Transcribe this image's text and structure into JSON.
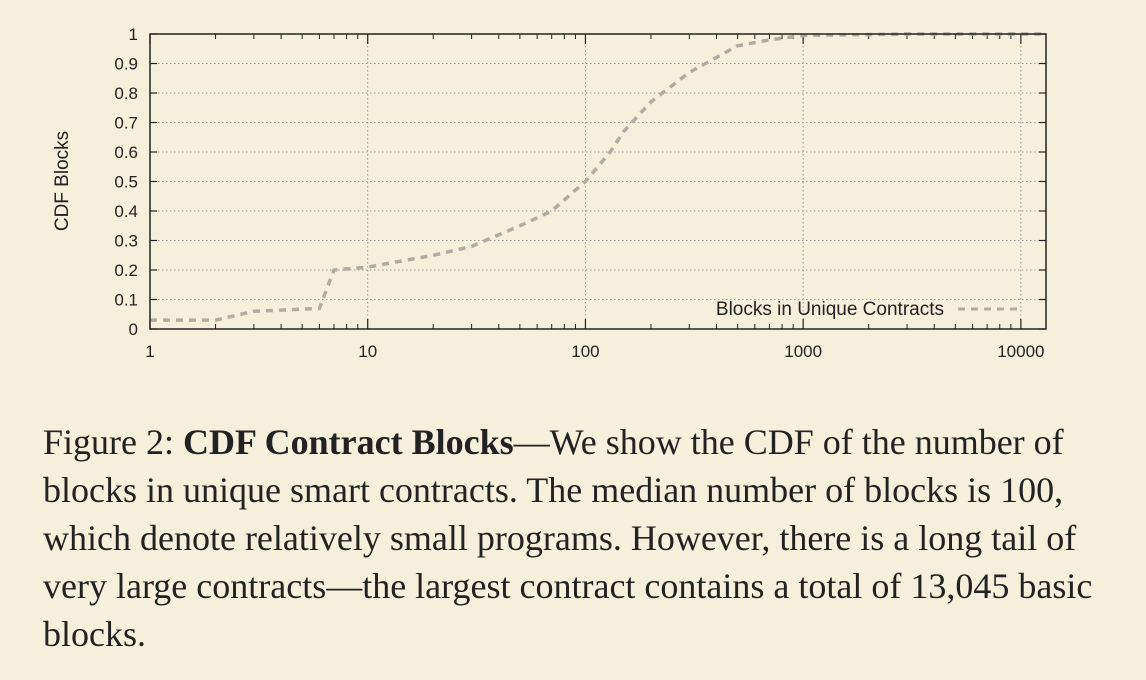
{
  "chart_data": {
    "type": "line",
    "xscale": "log",
    "xlim": [
      1,
      13045
    ],
    "ylim": [
      0,
      1
    ],
    "xticks": [
      1,
      10,
      100,
      1000,
      10000
    ],
    "xtick_labels": [
      "1",
      "10",
      "100",
      "1000",
      "10000"
    ],
    "yticks": [
      0,
      0.1,
      0.2,
      0.3,
      0.4,
      0.5,
      0.6,
      0.7,
      0.8,
      0.9,
      1
    ],
    "ytick_labels": [
      "0",
      "0.1",
      "0.2",
      "0.3",
      "0.4",
      "0.5",
      "0.6",
      "0.7",
      "0.8",
      "0.9",
      "1"
    ],
    "xlabel": "",
    "ylabel": "CDF Blocks",
    "grid": true,
    "legend_position": "bottom-right",
    "series": [
      {
        "name": "Blocks in Unique Contracts",
        "color": "#b0aca2",
        "style": "dashed",
        "x": [
          1,
          2,
          3,
          6,
          7,
          10,
          20,
          30,
          50,
          70,
          100,
          130,
          150,
          200,
          300,
          500,
          700,
          1000,
          3000,
          13045
        ],
        "y": [
          0.03,
          0.03,
          0.06,
          0.07,
          0.2,
          0.21,
          0.25,
          0.28,
          0.35,
          0.4,
          0.5,
          0.6,
          0.67,
          0.77,
          0.87,
          0.96,
          0.98,
          0.995,
          1.0,
          1.0
        ]
      }
    ]
  },
  "caption": {
    "figure_label": "Figure 2:",
    "title": "CDF Contract Blocks",
    "body": "—We show the CDF of the number of blocks in unique smart contracts. The median number of blocks is 100, which denote relatively small programs. However, there is a long tail of very large contracts—the largest contract contains a total of 13,045 basic blocks."
  }
}
